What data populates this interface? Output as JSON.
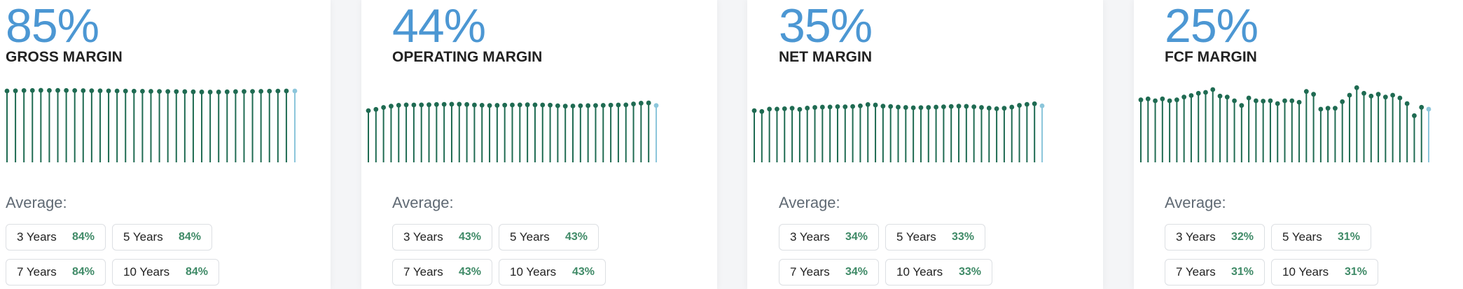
{
  "colors": {
    "big_pct": "#4c97d3",
    "stem": "#1f6b52",
    "stem_latest": "#8cc6db",
    "avg_value": "#3f8a67"
  },
  "average_label": "Average:",
  "cards": [
    {
      "value": "85%",
      "label": "GROSS MARGIN",
      "averages": [
        {
          "period": "3 Years",
          "value": "84%"
        },
        {
          "period": "5 Years",
          "value": "84%"
        },
        {
          "period": "7 Years",
          "value": "84%"
        },
        {
          "period": "10 Years",
          "value": "84%"
        }
      ]
    },
    {
      "value": "44%",
      "label": "OPERATING MARGIN",
      "averages": [
        {
          "period": "3 Years",
          "value": "43%"
        },
        {
          "period": "5 Years",
          "value": "43%"
        },
        {
          "period": "7 Years",
          "value": "43%"
        },
        {
          "period": "10 Years",
          "value": "43%"
        }
      ]
    },
    {
      "value": "35%",
      "label": "NET MARGIN",
      "averages": [
        {
          "period": "3 Years",
          "value": "34%"
        },
        {
          "period": "5 Years",
          "value": "33%"
        },
        {
          "period": "7 Years",
          "value": "34%"
        },
        {
          "period": "10 Years",
          "value": "33%"
        }
      ]
    },
    {
      "value": "25%",
      "label": "FCF MARGIN",
      "averages": [
        {
          "period": "3 Years",
          "value": "32%"
        },
        {
          "period": "5 Years",
          "value": "31%"
        },
        {
          "period": "7 Years",
          "value": "31%"
        },
        {
          "period": "10 Years",
          "value": "31%"
        }
      ]
    }
  ],
  "chart_data": [
    {
      "type": "lollipop",
      "ylim": [
        0,
        100
      ],
      "values": [
        85.0,
        85.2,
        85.5,
        85.6,
        85.8,
        85.6,
        85.7,
        85.6,
        85.5,
        85.4,
        85.3,
        85.2,
        85.1,
        85.0,
        84.9,
        84.8,
        84.7,
        84.6,
        84.5,
        84.4,
        84.3,
        84.2,
        84.0,
        83.8,
        83.7,
        83.8,
        84.0,
        84.2,
        84.4,
        84.5,
        84.6,
        84.8,
        84.9,
        85.0,
        85.0
      ]
    },
    {
      "type": "lollipop",
      "ylim": [
        0,
        65
      ],
      "values": [
        40.0,
        41.0,
        42.5,
        43.5,
        44.2,
        44.5,
        44.4,
        44.5,
        44.6,
        44.8,
        44.9,
        45.0,
        45.0,
        44.8,
        44.4,
        44.2,
        44.0,
        44.1,
        44.3,
        44.4,
        44.5,
        44.6,
        44.5,
        44.4,
        44.3,
        43.8,
        43.5,
        43.6,
        43.8,
        43.9,
        44.0,
        44.1,
        44.3,
        44.4,
        44.5,
        45.2,
        45.8,
        46.0,
        44.0
      ]
    },
    {
      "type": "lollipop",
      "ylim": [
        0,
        52
      ],
      "values": [
        32.0,
        31.5,
        33.0,
        33.0,
        33.2,
        33.5,
        32.8,
        33.6,
        34.0,
        34.2,
        34.3,
        34.5,
        34.4,
        34.6,
        35.0,
        35.8,
        35.5,
        34.8,
        34.6,
        34.2,
        34.0,
        33.8,
        33.9,
        34.0,
        34.2,
        34.4,
        34.6,
        34.8,
        34.7,
        34.4,
        34.0,
        33.6,
        33.2,
        33.5,
        34.2,
        35.3,
        35.9,
        36.3,
        35.0
      ]
    },
    {
      "type": "lollipop",
      "ylim": [
        0,
        45
      ],
      "values": [
        33.5,
        34.0,
        33.0,
        34.0,
        33.0,
        33.5,
        35.0,
        35.8,
        37.0,
        37.5,
        39.0,
        35.5,
        35.0,
        33.0,
        30.5,
        34.5,
        33.0,
        32.8,
        33.0,
        31.5,
        33.0,
        33.0,
        32.2,
        38.0,
        36.5,
        28.5,
        29.0,
        29.0,
        32.5,
        36.0,
        40.0,
        37.0,
        35.5,
        36.5,
        35.0,
        36.0,
        34.5,
        31.5,
        25.0,
        29.5,
        28.5
      ]
    }
  ]
}
